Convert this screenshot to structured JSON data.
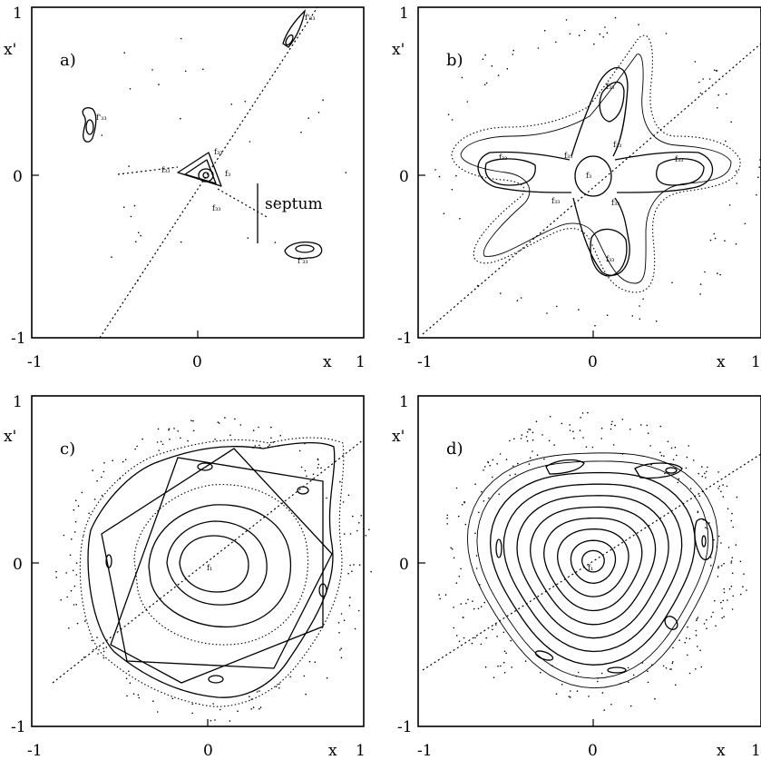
{
  "chart_data": [
    {
      "type": "scatter",
      "panel_label": "a)",
      "xlabel": "x",
      "ylabel": "x'",
      "xlim": [
        -1,
        1
      ],
      "ylim": [
        -1,
        1
      ],
      "x_ticks": [
        "-1",
        "0",
        "1"
      ],
      "y_ticks": [
        "1",
        "0",
        "-1"
      ],
      "annotations": [
        "septum",
        "f'₃₃",
        "f'₃₃",
        "f₃₃",
        "f₃₃",
        "f₃₃",
        "f₃",
        "f'₃₃"
      ],
      "diagonal": {
        "x": [
          -0.62,
          0.72
        ],
        "y": [
          -1.0,
          1.0
        ]
      },
      "islands": [
        {
          "x": 0.02,
          "y": 0.02,
          "levels": 3
        },
        {
          "x": -0.66,
          "y": 0.33,
          "levels": 2
        },
        {
          "x": 0.61,
          "y": -0.45,
          "levels": 2
        },
        {
          "x": 0.62,
          "y": 0.92,
          "levels": 2
        }
      ],
      "septum_line": {
        "x": 0.32,
        "y": [
          -0.4,
          0.05
        ]
      }
    },
    {
      "type": "scatter",
      "panel_label": "b)",
      "xlabel": "x",
      "ylabel": "x'",
      "xlim": [
        -1,
        1
      ],
      "ylim": [
        -1,
        1
      ],
      "x_ticks": [
        "-1",
        "0",
        "1"
      ],
      "y_ticks": [
        "1",
        "0",
        "-1"
      ],
      "annotations": [
        "f₃₃",
        "f₃₃",
        "f₃₃",
        "f₃₃",
        "f₃",
        "f₃₃",
        "f₃₃",
        "f₃₃",
        "f₃₃"
      ],
      "diagonal": {
        "x": [
          -1.0,
          1.0
        ],
        "y": [
          -1.0,
          1.0
        ]
      },
      "arms": 4
    },
    {
      "type": "scatter",
      "panel_label": "c)",
      "xlabel": "x",
      "ylabel": "x'",
      "xlim": [
        -1,
        1
      ],
      "ylim": [
        -1,
        1
      ],
      "x_ticks": [
        "-1",
        "0",
        "1"
      ],
      "y_ticks": [
        "1",
        "0",
        "-1"
      ],
      "annotations": [
        "f₁"
      ],
      "diagonal": {
        "x": [
          -1.0,
          1.0
        ],
        "y": [
          -0.72,
          0.85
        ]
      },
      "resonance_islands": 5
    },
    {
      "type": "scatter",
      "panel_label": "d)",
      "xlabel": "x",
      "ylabel": "x'",
      "xlim": [
        -1,
        1
      ],
      "ylim": [
        -1,
        1
      ],
      "x_ticks": [
        "-1",
        "0",
        "1"
      ],
      "y_ticks": [
        "1",
        "0",
        "-1"
      ],
      "annotations": [
        "f₁"
      ],
      "diagonal": {
        "x": [
          -1.0,
          1.0
        ],
        "y": [
          -0.65,
          0.65
        ]
      },
      "resonance_islands": 8
    }
  ]
}
